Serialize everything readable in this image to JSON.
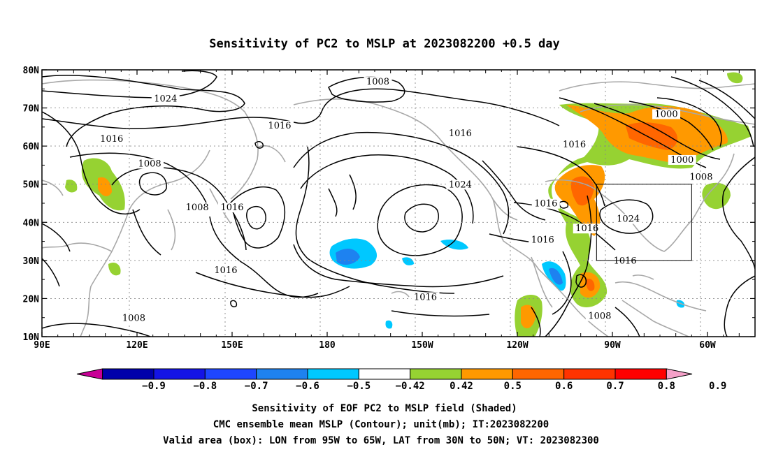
{
  "title": "Sensitivity of PC2 to MSLP at 2023082200 +0.5 day",
  "lat_labels": [
    "80N",
    "70N",
    "60N",
    "50N",
    "40N",
    "30N",
    "20N",
    "10N"
  ],
  "lon_labels": [
    "90E",
    "120E",
    "150E",
    "180",
    "150W",
    "120W",
    "90W",
    "60W"
  ],
  "contour_labels": [
    {
      "text": "1008",
      "lon": 196,
      "lat": 76.5
    },
    {
      "text": "1024",
      "lon": 129,
      "lat": 72
    },
    {
      "text": "1016",
      "lon": 165,
      "lat": 65
    },
    {
      "text": "1016",
      "lon": 112,
      "lat": 61.5
    },
    {
      "text": "1016",
      "lon": 222,
      "lat": 63
    },
    {
      "text": "1016",
      "lon": 258,
      "lat": 60
    },
    {
      "text": "1000",
      "lon": 287,
      "lat": 68
    },
    {
      "text": "1000",
      "lon": 292,
      "lat": 56
    },
    {
      "text": "1008",
      "lon": 298,
      "lat": 51.5
    },
    {
      "text": "1008",
      "lon": 124,
      "lat": 55
    },
    {
      "text": "1024",
      "lon": 222,
      "lat": 49.5
    },
    {
      "text": "1016",
      "lon": 249,
      "lat": 44.5
    },
    {
      "text": "1008",
      "lon": 139,
      "lat": 43.5
    },
    {
      "text": "1016",
      "lon": 150,
      "lat": 43.5
    },
    {
      "text": "1024",
      "lon": 275,
      "lat": 40.5
    },
    {
      "text": "1016",
      "lon": 262,
      "lat": 38
    },
    {
      "text": "1016",
      "lon": 248,
      "lat": 35
    },
    {
      "text": "1016",
      "lon": 148,
      "lat": 27
    },
    {
      "text": "1016",
      "lon": 274,
      "lat": 29.5
    },
    {
      "text": "1016",
      "lon": 211,
      "lat": 20
    },
    {
      "text": "1008",
      "lon": 119,
      "lat": 14.5
    },
    {
      "text": "1008",
      "lon": 266,
      "lat": 15
    }
  ],
  "colorbar": {
    "colors": [
      "#c80096",
      "#0000aa",
      "#1414e6",
      "#1e46ff",
      "#1e82f0",
      "#00c8ff",
      "#ffffff",
      "#96d232",
      "#ff9900",
      "#ff6600",
      "#ff3300",
      "#ff0000",
      "#f5a0c8"
    ],
    "labels": [
      "-0.9",
      "-0.8",
      "-0.7",
      "-0.6",
      "-0.5",
      "-0.42",
      "0.42",
      "0.5",
      "0.6",
      "0.7",
      "0.8",
      "0.9"
    ]
  },
  "captions": [
    "Sensitivity of EOF PC2 to MSLP field (Shaded)",
    "CMC ensemble mean MSLP (Contour); unit(mb); IT:2023082200",
    "Valid area (box): LON from 95W to 65W, LAT from 30N to 50N; VT: 2023082300"
  ],
  "valid_box": {
    "lon_min": 265,
    "lon_max": 295,
    "lat_min": 30,
    "lat_max": 50
  }
}
